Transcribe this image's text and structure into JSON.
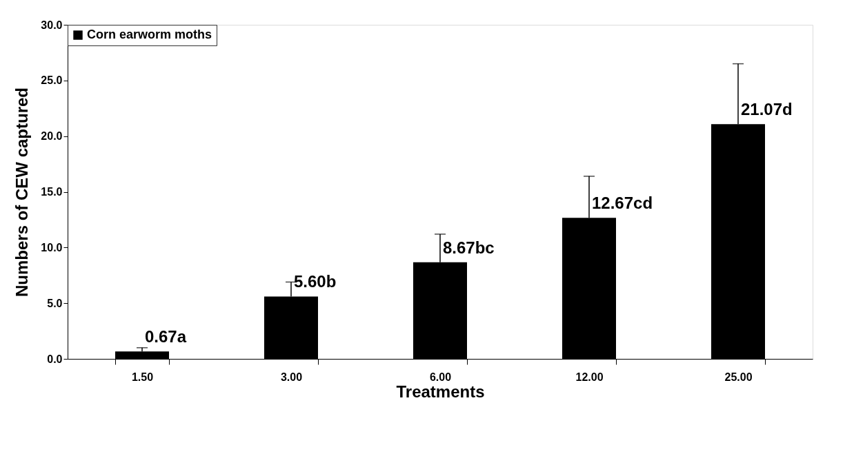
{
  "chart_data": {
    "type": "bar",
    "xlabel": "Treatments",
    "ylabel": "Numbers of CEW captured",
    "categories": [
      "1.50",
      "3.00",
      "6.00",
      "12.00",
      "25.00"
    ],
    "series": [
      {
        "name": "Corn earworm moths",
        "color": "#000000",
        "values": [
          0.67,
          5.6,
          8.67,
          12.67,
          21.07
        ],
        "errors": [
          [
            0.67,
            1.0
          ],
          [
            5.6,
            6.9
          ],
          [
            8.67,
            11.2
          ],
          [
            12.67,
            16.4
          ],
          [
            21.07,
            26.5
          ]
        ],
        "value_labels": [
          "0.67a",
          "5.60b",
          "8.67bc",
          "12.67cd",
          "21.07d"
        ]
      }
    ],
    "ylim": [
      0,
      30
    ],
    "yticks": [
      {
        "value": 0,
        "label": "0.0"
      },
      {
        "value": 5,
        "label": "5.0"
      },
      {
        "value": 10,
        "label": "10.0"
      },
      {
        "value": 15,
        "label": "15.0"
      },
      {
        "value": 20,
        "label": "20.0"
      },
      {
        "value": 25,
        "label": "25.0"
      },
      {
        "value": 30,
        "label": "30.0"
      }
    ],
    "grid": false,
    "legend": "top left"
  }
}
